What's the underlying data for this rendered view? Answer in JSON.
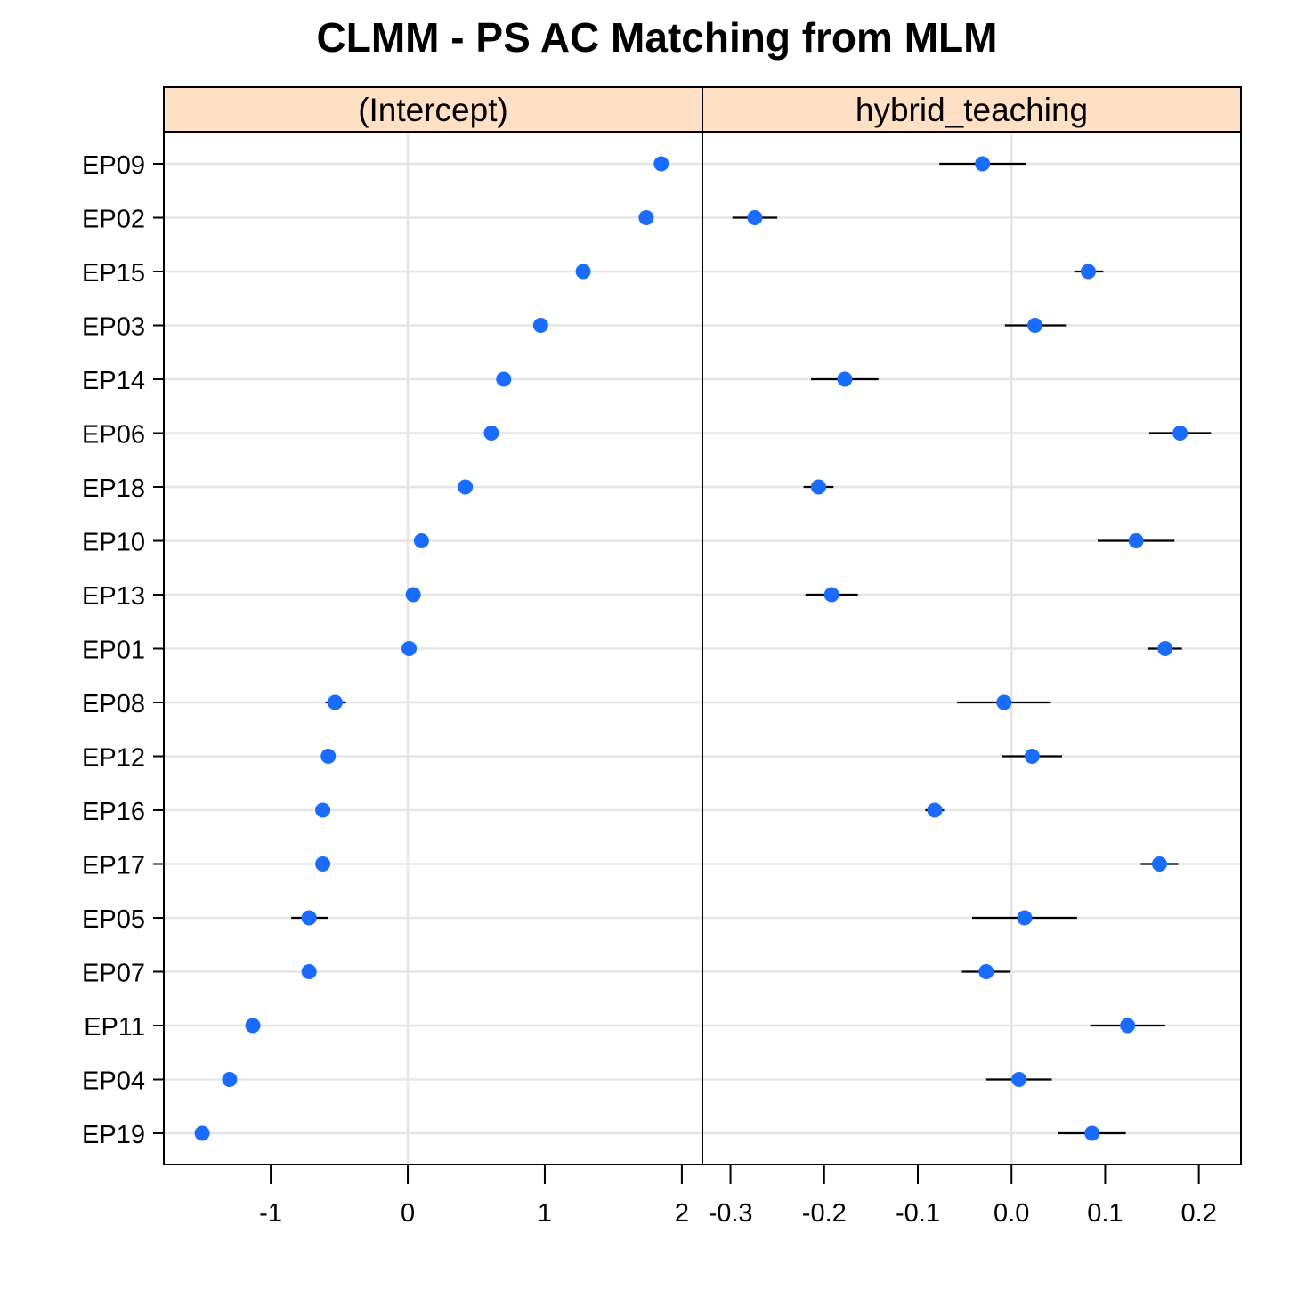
{
  "chart_data": {
    "type": "scatter",
    "title": "CLMM - PS AC Matching from MLM",
    "categories": [
      "EP09",
      "EP02",
      "EP15",
      "EP03",
      "EP14",
      "EP06",
      "EP18",
      "EP10",
      "EP13",
      "EP01",
      "EP08",
      "EP12",
      "EP16",
      "EP17",
      "EP05",
      "EP07",
      "EP11",
      "EP04",
      "EP19"
    ],
    "grid": true,
    "panels": [
      {
        "strip": "(Intercept)",
        "xlim": [
          -1.78,
          2.15
        ],
        "xticks": [
          -1,
          0,
          1,
          2
        ],
        "xtick_labels": [
          "-1",
          "0",
          "1",
          "2"
        ],
        "reference_line": 0,
        "values": [
          1.85,
          1.74,
          1.28,
          0.97,
          0.7,
          0.61,
          0.42,
          0.1,
          0.04,
          0.01,
          -0.53,
          -0.58,
          -0.62,
          -0.62,
          -0.72,
          -0.72,
          -1.13,
          -1.3,
          -1.5
        ],
        "lower": [
          1.8,
          1.72,
          1.27,
          0.96,
          0.69,
          0.6,
          0.41,
          0.09,
          0.03,
          0.0,
          -0.6,
          -0.6,
          -0.64,
          -0.64,
          -0.85,
          -0.74,
          -1.15,
          -1.32,
          -1.52
        ],
        "upper": [
          1.9,
          1.76,
          1.29,
          0.98,
          0.71,
          0.62,
          0.43,
          0.11,
          0.05,
          0.02,
          -0.45,
          -0.56,
          -0.6,
          -0.6,
          -0.58,
          -0.7,
          -1.11,
          -1.28,
          -1.48
        ]
      },
      {
        "strip": "hybrid_teaching",
        "xlim": [
          -0.33,
          0.245
        ],
        "xticks": [
          -0.3,
          -0.2,
          -0.1,
          0.0,
          0.1,
          0.2
        ],
        "xtick_labels": [
          "-0.3",
          "-0.2",
          "-0.1",
          "0.0",
          "0.1",
          "0.2"
        ],
        "reference_line": 0,
        "values": [
          -0.031,
          -0.274,
          0.082,
          0.025,
          -0.178,
          0.18,
          -0.206,
          0.133,
          -0.192,
          0.164,
          -0.008,
          0.022,
          -0.082,
          0.158,
          0.014,
          -0.027,
          0.124,
          0.008,
          0.086
        ],
        "lower": [
          -0.077,
          -0.298,
          0.067,
          -0.007,
          -0.214,
          0.147,
          -0.222,
          0.092,
          -0.22,
          0.146,
          -0.058,
          -0.01,
          -0.092,
          0.138,
          -0.042,
          -0.053,
          0.084,
          -0.027,
          0.05
        ],
        "upper": [
          0.015,
          -0.25,
          0.098,
          0.058,
          -0.142,
          0.213,
          -0.19,
          0.174,
          -0.164,
          0.182,
          0.042,
          0.054,
          -0.072,
          0.178,
          0.07,
          -0.001,
          0.164,
          0.043,
          0.122
        ]
      }
    ]
  },
  "colors": {
    "point": "#1a6cff",
    "strip_bg": "#ffe0c4",
    "grid": "#e5e5e5",
    "errorbar": "#000000",
    "frame": "#000000"
  }
}
